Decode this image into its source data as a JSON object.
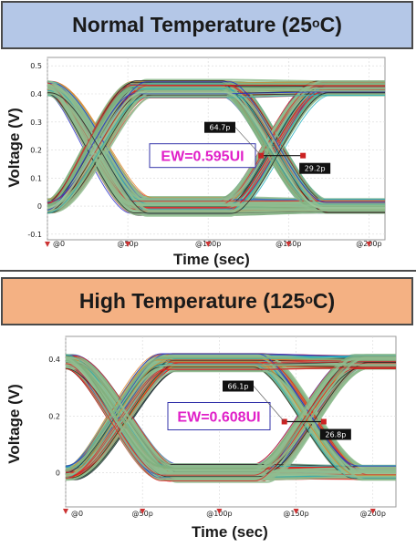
{
  "chart_data": [
    {
      "type": "eye-diagram",
      "title": "Normal Temperature (25 ",
      "title_sup": "o",
      "title_tail": "C)",
      "xlabel": "Time (sec)",
      "ylabel": "Voltage (V)",
      "x_ticks": [
        "@0",
        "@50p",
        "@100p",
        "@150p",
        "@200p"
      ],
      "x_tick_values": [
        0,
        50,
        100,
        150,
        200
      ],
      "y_ticks": [
        "0.5",
        "0.4",
        "0.3",
        "0.2",
        "0.1",
        "0",
        "-0.1"
      ],
      "y_tick_values": [
        0.5,
        0.4,
        0.3,
        0.2,
        0.1,
        0,
        -0.1
      ],
      "xlim": [
        0,
        210
      ],
      "ylim": [
        -0.12,
        0.53
      ],
      "eye_width_label": "EW=0.595UI",
      "marker_upper": "64.7p",
      "marker_lower": "29.2p",
      "ew_start_ps": 64.7,
      "ew_end_ps": 159,
      "ew_level_v": 0.18,
      "crossings_ps": [
        30,
        140
      ],
      "levels_v": [
        0.42,
        0.0
      ],
      "grid": true,
      "colors": {
        "bg": "#ffffff",
        "eye": "#8fbc8f",
        "accent": "#e020c8"
      }
    },
    {
      "type": "eye-diagram",
      "title": "High Temperature (125 ",
      "title_sup": "o",
      "title_tail": "C)",
      "xlabel": "Time (sec)",
      "ylabel": "Voltage (V)",
      "x_ticks": [
        "@0",
        "@50p",
        "@100p",
        "@150p",
        "@200p"
      ],
      "x_tick_values": [
        0,
        50,
        100,
        150,
        200
      ],
      "y_ticks": [
        "0.4",
        "0.2",
        "0"
      ],
      "y_tick_values": [
        0.4,
        0.2,
        0
      ],
      "xlim": [
        0,
        215
      ],
      "ylim": [
        -0.12,
        0.48
      ],
      "eye_width_label": "EW=0.608UI",
      "marker_upper": "66.1p",
      "marker_lower": "26.8p",
      "ew_start_ps": 66.1,
      "ew_end_ps": 168,
      "ew_level_v": 0.18,
      "crossings_ps": [
        35,
        158
      ],
      "levels_v": [
        0.39,
        0.0
      ],
      "grid": true,
      "colors": {
        "bg": "#ffffff",
        "eye": "#8fbc8f",
        "accent": "#e020c8"
      }
    }
  ]
}
